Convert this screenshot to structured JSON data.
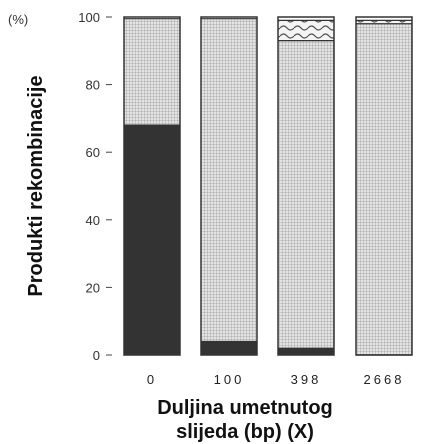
{
  "chart_data": {
    "type": "bar",
    "stacked": true,
    "unit_label": "(%)",
    "ylabel": "Produkti rekombinacije",
    "xlabel_lines": [
      "Duljina umetnutog",
      "slijeda (bp) (X)"
    ],
    "categories": [
      "0",
      "100",
      "398",
      "2668"
    ],
    "yticks": [
      "0",
      "20",
      "40",
      "60",
      "80",
      "100"
    ],
    "ylim": [
      0,
      100
    ],
    "series": [
      {
        "values": [
          68,
          4,
          2,
          0
        ],
        "color": "#333333",
        "pattern": "solid"
      },
      {
        "values": [
          31.5,
          95.5,
          91,
          98
        ],
        "color": "#c8c8c8",
        "pattern": "grid"
      },
      {
        "values": [
          0,
          0,
          6,
          1
        ],
        "color": "#dddddd",
        "pattern": "wave"
      },
      {
        "values": [
          0.5,
          0.5,
          1,
          1
        ],
        "color": "#ffffff",
        "pattern": "blank"
      }
    ],
    "grid": false
  }
}
